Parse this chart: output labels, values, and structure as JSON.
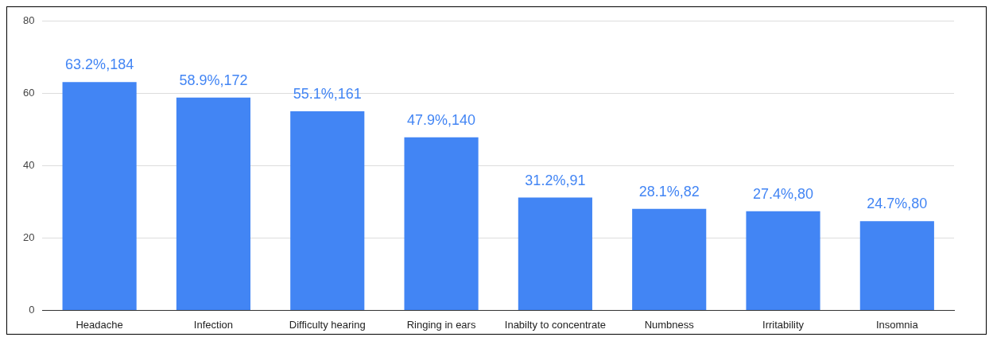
{
  "chart_data": {
    "type": "bar",
    "categories": [
      "Headache",
      "Infection",
      "Difficulty hearing",
      "Ringing in ears",
      "Inabilty to concentrate",
      "Numbness",
      "Irritability",
      "Insomnia"
    ],
    "values": [
      63.2,
      58.9,
      55.1,
      47.9,
      31.2,
      28.1,
      27.4,
      24.7
    ],
    "value_labels": [
      "63.2%,184",
      "58.9%,172",
      "55.1%,161",
      "47.9%,140",
      "31.2%,91",
      "28.1%,82",
      "27.4%,80",
      "24.7%,80"
    ],
    "color": "#4285f4",
    "ylim": [
      0,
      80
    ],
    "yticks": [
      0,
      20,
      40,
      60,
      80
    ],
    "grid": "y",
    "legend": false
  }
}
